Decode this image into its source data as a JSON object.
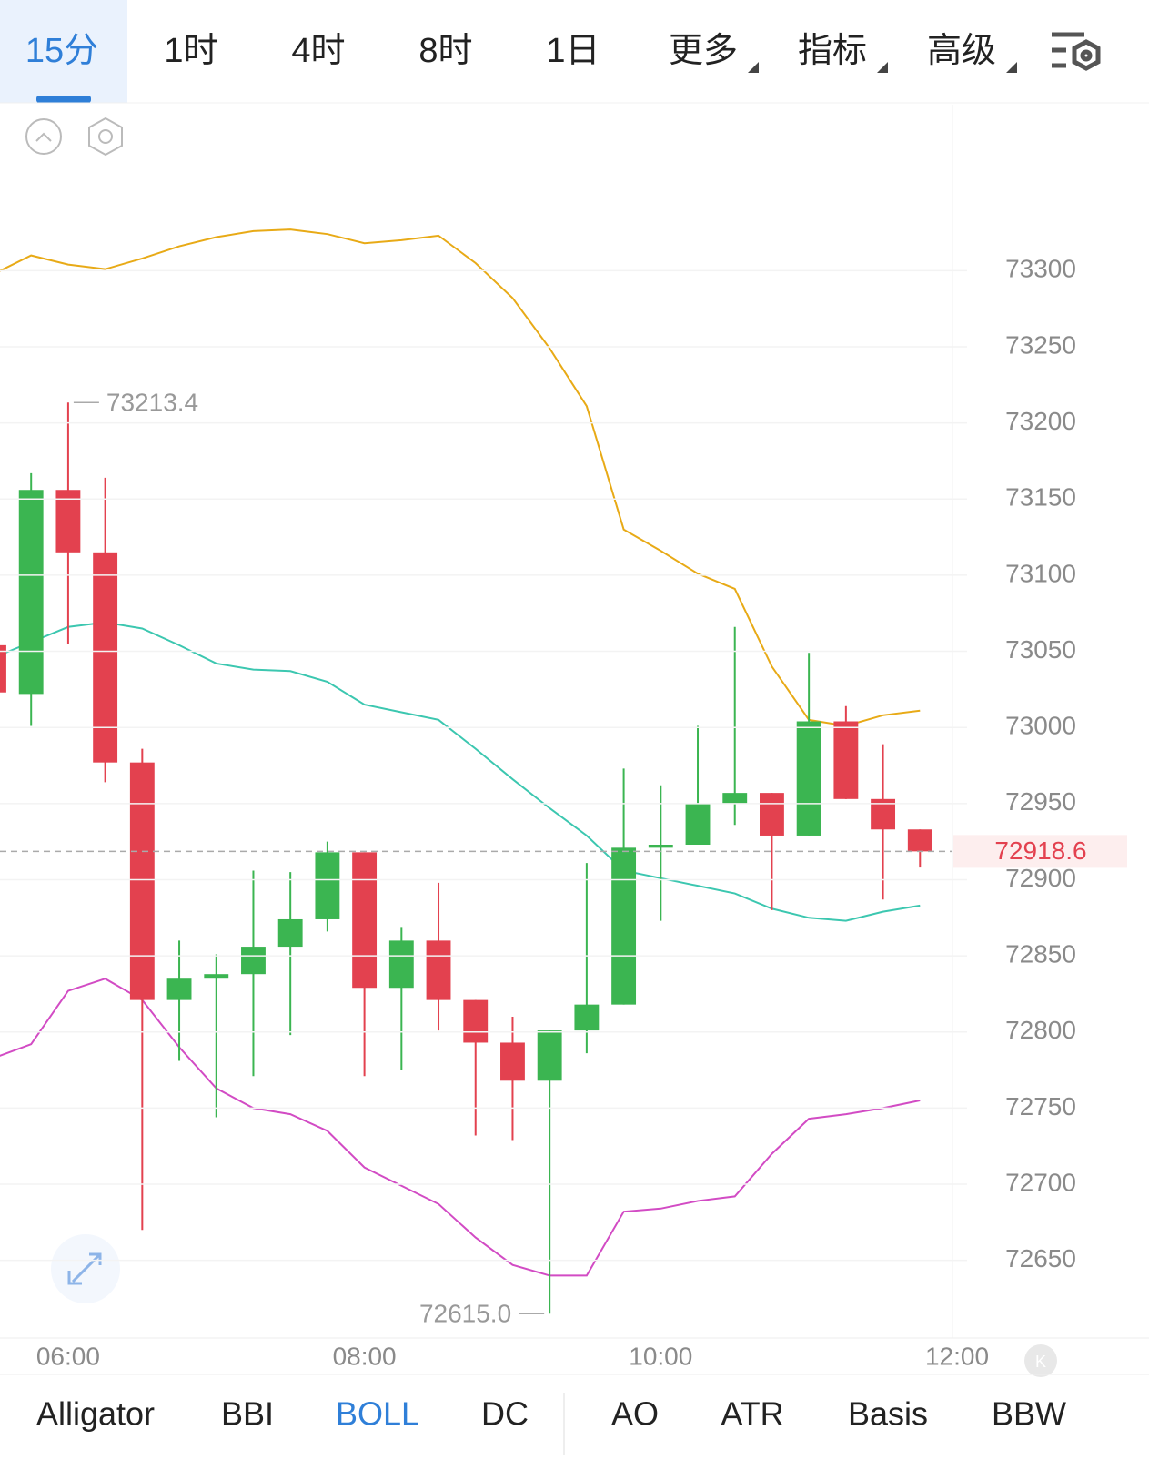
{
  "tabs": [
    "15分",
    "1时",
    "4时",
    "8时",
    "1日",
    "更多",
    "指标",
    "高级"
  ],
  "indicators": [
    "Alligator",
    "BBI",
    "BOLL",
    "DC",
    "AO",
    "ATR",
    "Basis",
    "BBW"
  ],
  "chart_data": {
    "type": "candlestick",
    "x": [
      5.5,
      5.75,
      6,
      6.25,
      6.5,
      6.75,
      7,
      7.25,
      7.5,
      7.75,
      8,
      8.25,
      8.5,
      8.75,
      9,
      9.25,
      9.5,
      9.75,
      10,
      10.25,
      10.5,
      10.75,
      11,
      11.25,
      11.5,
      11.75
    ],
    "open": [
      73054,
      73022,
      73156,
      73115,
      72977,
      72821,
      72835,
      72838,
      72856,
      72874,
      72918,
      72829,
      72860,
      72821,
      72793,
      72768,
      72801,
      72818,
      72921,
      72923,
      72950,
      72957,
      72929,
      73004,
      72953,
      72933
    ],
    "high": [
      73054,
      73167,
      73213.4,
      73164,
      72986,
      72860,
      72851,
      72906,
      72905,
      72925,
      72918,
      72869,
      72898,
      72821,
      72810,
      72801,
      72911,
      72973,
      72962,
      73001,
      73066,
      72957,
      73049,
      73014,
      72989,
      72933
    ],
    "low": [
      73023,
      73001,
      73055,
      72964,
      72670,
      72781,
      72744,
      72771,
      72798,
      72866,
      72771,
      72775,
      72801,
      72732,
      72729,
      72615,
      72786,
      72818,
      72873,
      72923,
      72936,
      72880,
      72929,
      72953,
      72887,
      72908
    ],
    "close": [
      73023,
      73156,
      73115,
      72977,
      72821,
      72835,
      72838,
      72856,
      72874,
      72918,
      72829,
      72860,
      72821,
      72793,
      72768,
      72801,
      72818,
      72921,
      72923,
      72950,
      72957,
      72929,
      73004,
      72953,
      72933,
      72918.6
    ],
    "up_color": "#3bb551",
    "down_color": "#e3414f",
    "bands": [
      {
        "color": "#e8aa16",
        "values": [
          73298,
          73310,
          73304,
          73301,
          73308,
          73316,
          73322,
          73326,
          73327,
          73324,
          73318,
          73320,
          73323,
          73305,
          73282,
          73249,
          73211,
          73130,
          73116,
          73101,
          73091,
          73040,
          73005,
          73001,
          73008,
          73011
        ]
      },
      {
        "color": "#3cc7b0",
        "values": [
          73046,
          73056,
          73066,
          73069,
          73065,
          73054,
          73042,
          73038,
          73037,
          73030,
          73015,
          73010,
          73005,
          72986,
          72966,
          72947,
          72929,
          72906,
          72901,
          72896,
          72891,
          72881,
          72875,
          72873,
          72879,
          72883
        ]
      },
      {
        "color": "#d24bc4",
        "values": [
          72783,
          72792,
          72827,
          72835,
          72821,
          72790,
          72763,
          72750,
          72746,
          72735,
          72711,
          72699,
          72687,
          72665,
          72647,
          72640,
          72640,
          72682,
          72684,
          72689,
          72692,
          72720,
          72743,
          72746,
          72750,
          72755
        ]
      }
    ],
    "max_label": "73213.4",
    "min_label": "72615.0",
    "last_price_label": "72918.6",
    "xlim": [
      5.54,
      12
    ],
    "xticks": [
      {
        "value": 6,
        "label": "06:00"
      },
      {
        "value": 8,
        "label": "08:00"
      },
      {
        "value": 10,
        "label": "10:00"
      },
      {
        "value": 12,
        "label": "12:00"
      }
    ],
    "ylim": [
      72599,
      73409
    ],
    "yticks": [
      72650,
      72700,
      72750,
      72800,
      72850,
      72900,
      72950,
      73000,
      73050,
      73100,
      73150,
      73200,
      73250,
      73300
    ],
    "grid": true
  }
}
